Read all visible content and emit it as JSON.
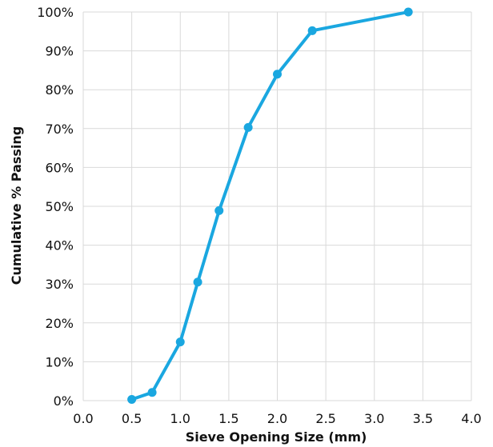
{
  "chart_data": {
    "type": "line",
    "title": "",
    "xlabel": "Sieve Opening Size (mm)",
    "ylabel": "Cumulative % Passing",
    "xlim": [
      0,
      4
    ],
    "ylim": [
      0,
      100
    ],
    "x_ticks": [
      0,
      0.5,
      1,
      1.5,
      2,
      2.5,
      3,
      3.5,
      4
    ],
    "x_tick_labels": [
      "0.0",
      "0.5",
      "1.0",
      "1.5",
      "2.0",
      "2.5",
      "3.0",
      "3.5",
      "4.0"
    ],
    "y_ticks": [
      0,
      10,
      20,
      30,
      40,
      50,
      60,
      70,
      80,
      90,
      100
    ],
    "y_tick_labels": [
      "0%",
      "10%",
      "20%",
      "30%",
      "40%",
      "50%",
      "60%",
      "70%",
      "80%",
      "90%",
      "100%"
    ],
    "grid": true,
    "legend": "none",
    "series": [
      {
        "color": "#1aa7e0",
        "marker": "circle",
        "points": [
          {
            "x": 0.5,
            "y": 0.3
          },
          {
            "x": 0.71,
            "y": 2.1
          },
          {
            "x": 1.0,
            "y": 15.1
          },
          {
            "x": 1.18,
            "y": 30.5
          },
          {
            "x": 1.4,
            "y": 48.9
          },
          {
            "x": 1.7,
            "y": 70.3
          },
          {
            "x": 2.0,
            "y": 84.0
          },
          {
            "x": 2.36,
            "y": 95.2
          },
          {
            "x": 3.35,
            "y": 100.0
          }
        ]
      }
    ]
  }
}
